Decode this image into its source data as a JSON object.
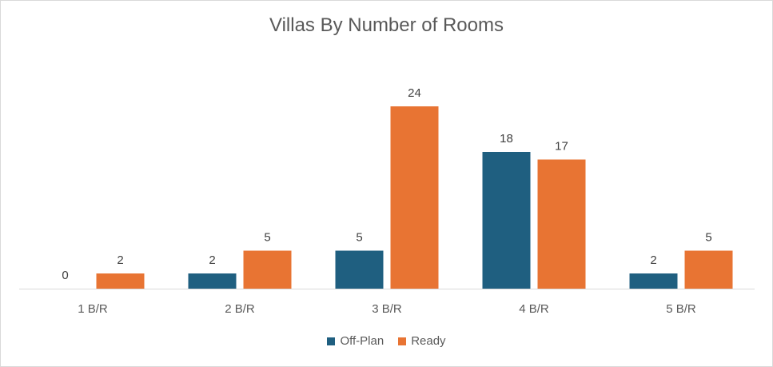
{
  "chart_data": {
    "type": "bar",
    "title": "Villas By Number of Rooms",
    "categories": [
      "1 B/R",
      "2 B/R",
      "3 B/R",
      "4 B/R",
      "5 B/R"
    ],
    "series": [
      {
        "name": "Off-Plan",
        "values": [
          0,
          2,
          5,
          18,
          2
        ],
        "color": "#1f5f80"
      },
      {
        "name": "Ready",
        "values": [
          2,
          5,
          24,
          17,
          5
        ],
        "color": "#e87433"
      }
    ],
    "xlabel": "",
    "ylabel": "",
    "ylim": [
      0,
      26
    ],
    "grid": false,
    "data_labels": true,
    "legend_position": "bottom"
  }
}
